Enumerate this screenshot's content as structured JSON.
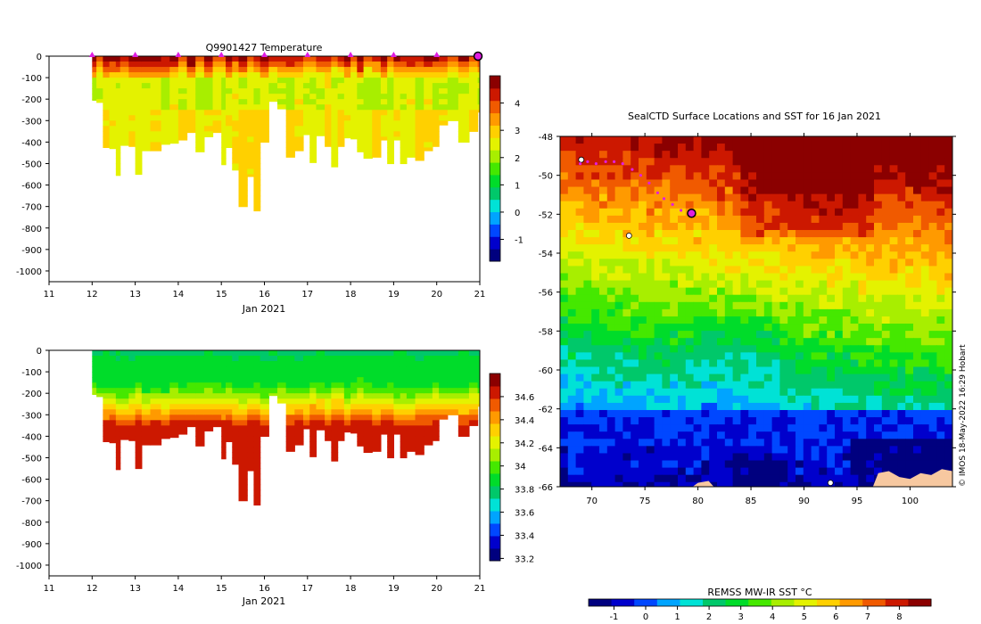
{
  "palette": [
    "#00007f",
    "#0000cc",
    "#0047ff",
    "#00a4ff",
    "#00e2d6",
    "#00c86a",
    "#00dc2a",
    "#45e800",
    "#a8ee00",
    "#e4f200",
    "#ffd000",
    "#ff9a00",
    "#f05a00",
    "#cc1800",
    "#8b0000"
  ],
  "land_color": "#f7c8a0",
  "track_color": "#e01ee0",
  "profile_x_days": [
    12.0,
    12.1,
    12.25,
    12.4,
    12.55,
    12.65,
    12.85,
    13.0,
    13.15,
    13.35,
    13.6,
    13.8,
    14.0,
    14.2,
    14.4,
    14.6,
    14.8,
    15.0,
    15.1,
    15.25,
    15.4,
    15.6,
    15.75,
    15.9,
    16.1,
    16.3,
    16.5,
    16.7,
    16.9,
    17.05,
    17.2,
    17.4,
    17.55,
    17.7,
    17.85,
    18.0,
    18.15,
    18.3,
    18.5,
    18.7,
    18.85,
    19.0,
    19.15,
    19.3,
    19.5,
    19.7,
    19.9,
    20.05,
    20.25,
    20.5,
    20.75,
    20.95,
    21.05
  ],
  "profile_max_depth": [
    205,
    215,
    425,
    430,
    555,
    415,
    420,
    550,
    440,
    440,
    410,
    405,
    390,
    355,
    445,
    375,
    355,
    505,
    425,
    530,
    700,
    560,
    720,
    400,
    210,
    245,
    470,
    440,
    365,
    495,
    370,
    420,
    515,
    420,
    380,
    385,
    445,
    475,
    470,
    390,
    500,
    390,
    500,
    470,
    485,
    440,
    420,
    320,
    300,
    400,
    350,
    260,
    280
  ],
  "charts": [
    {
      "type": "heatmap",
      "title": "Q9901427  Temperature",
      "xlabel": "Jan 2021",
      "ylabel": "",
      "x_range": [
        11,
        21
      ],
      "x_ticks": [
        "11",
        "12",
        "13",
        "14",
        "15",
        "16",
        "17",
        "18",
        "19",
        "20",
        "21"
      ],
      "y_range": [
        0,
        -1050
      ],
      "y_ticks": [
        "0",
        "-100",
        "-200",
        "-300",
        "-400",
        "-500",
        "-600",
        "-700",
        "-800",
        "-900",
        "-1000"
      ],
      "colorbar": {
        "range": [
          -1.8,
          5.0
        ],
        "ticks": [
          "4",
          "3",
          "2",
          "1",
          "0",
          "-1"
        ],
        "tick_values": [
          4,
          3,
          2,
          1,
          0,
          -1
        ]
      },
      "surface_markers_days": [
        12,
        13,
        14,
        15,
        16,
        17,
        18,
        19,
        20
      ],
      "current_marker_day": 21,
      "profile_model": {
        "surface_value": 4.2,
        "warm_depth": 80,
        "mid_value": 2.3,
        "deep_value": 2.7,
        "transition_depth": 230
      }
    },
    {
      "type": "heatmap",
      "title": "",
      "xlabel": "Jan 2021",
      "ylabel": "",
      "x_range": [
        11,
        21
      ],
      "x_ticks": [
        "11",
        "12",
        "13",
        "14",
        "15",
        "16",
        "17",
        "18",
        "19",
        "20",
        "21"
      ],
      "y_range": [
        0,
        -1050
      ],
      "y_ticks": [
        "0",
        "-100",
        "-200",
        "-300",
        "-400",
        "-500",
        "-600",
        "-700",
        "-800",
        "-900",
        "-1000"
      ],
      "colorbar": {
        "range": [
          33.18,
          34.8
        ],
        "ticks": [
          "34.6",
          "34.4",
          "34.2",
          "34",
          "33.8",
          "33.6",
          "33.4",
          "33.2"
        ],
        "tick_values": [
          34.6,
          34.4,
          34.2,
          34.0,
          33.8,
          33.6,
          33.4,
          33.2
        ]
      },
      "profile_model": {
        "surface_value": 33.82,
        "halocline_top": 160,
        "halocline_bottom": 330,
        "deep_value": 34.62
      }
    },
    {
      "type": "heatmap",
      "title": "SealCTD Surface Locations and SST for 16 Jan 2021",
      "xlabel": "",
      "ylabel": "",
      "lon_range": [
        67,
        104
      ],
      "lat_range": [
        -66,
        -48
      ],
      "x_ticks": [
        "70",
        "75",
        "80",
        "85",
        "90",
        "95",
        "100"
      ],
      "x_tick_values": [
        70,
        75,
        80,
        85,
        90,
        95,
        100
      ],
      "y_ticks": [
        "-48",
        "-50",
        "-52",
        "-54",
        "-56",
        "-58",
        "-60",
        "-62",
        "-64",
        "-66"
      ],
      "y_tick_values": [
        -48,
        -50,
        -52,
        -54,
        -56,
        -58,
        -60,
        -62,
        -64,
        -66
      ],
      "colorbar": {
        "label": "REMSS MW-IR SST °C",
        "range": [
          -1.8,
          9.0
        ],
        "ticks": [
          "-1",
          "0",
          "1",
          "2",
          "3",
          "4",
          "5",
          "6",
          "7",
          "8"
        ],
        "tick_values": [
          -1,
          0,
          1,
          2,
          3,
          4,
          5,
          6,
          7,
          8
        ]
      },
      "track": [
        [
          68.9,
          -49.4
        ],
        [
          69.6,
          -49.3
        ],
        [
          70.4,
          -49.4
        ],
        [
          71.3,
          -49.3
        ],
        [
          72.1,
          -49.3
        ],
        [
          72.9,
          -49.4
        ],
        [
          73.8,
          -49.7
        ],
        [
          74.6,
          -50.0
        ],
        [
          75.4,
          -50.4
        ],
        [
          76.2,
          -50.9
        ],
        [
          76.8,
          -51.2
        ],
        [
          77.6,
          -51.5
        ],
        [
          78.4,
          -51.8
        ],
        [
          79.3,
          -51.9
        ]
      ],
      "track_end": [
        79.4,
        -51.95
      ],
      "credit": "© IMOS 18-May-2022 16:29 Hobart"
    }
  ]
}
